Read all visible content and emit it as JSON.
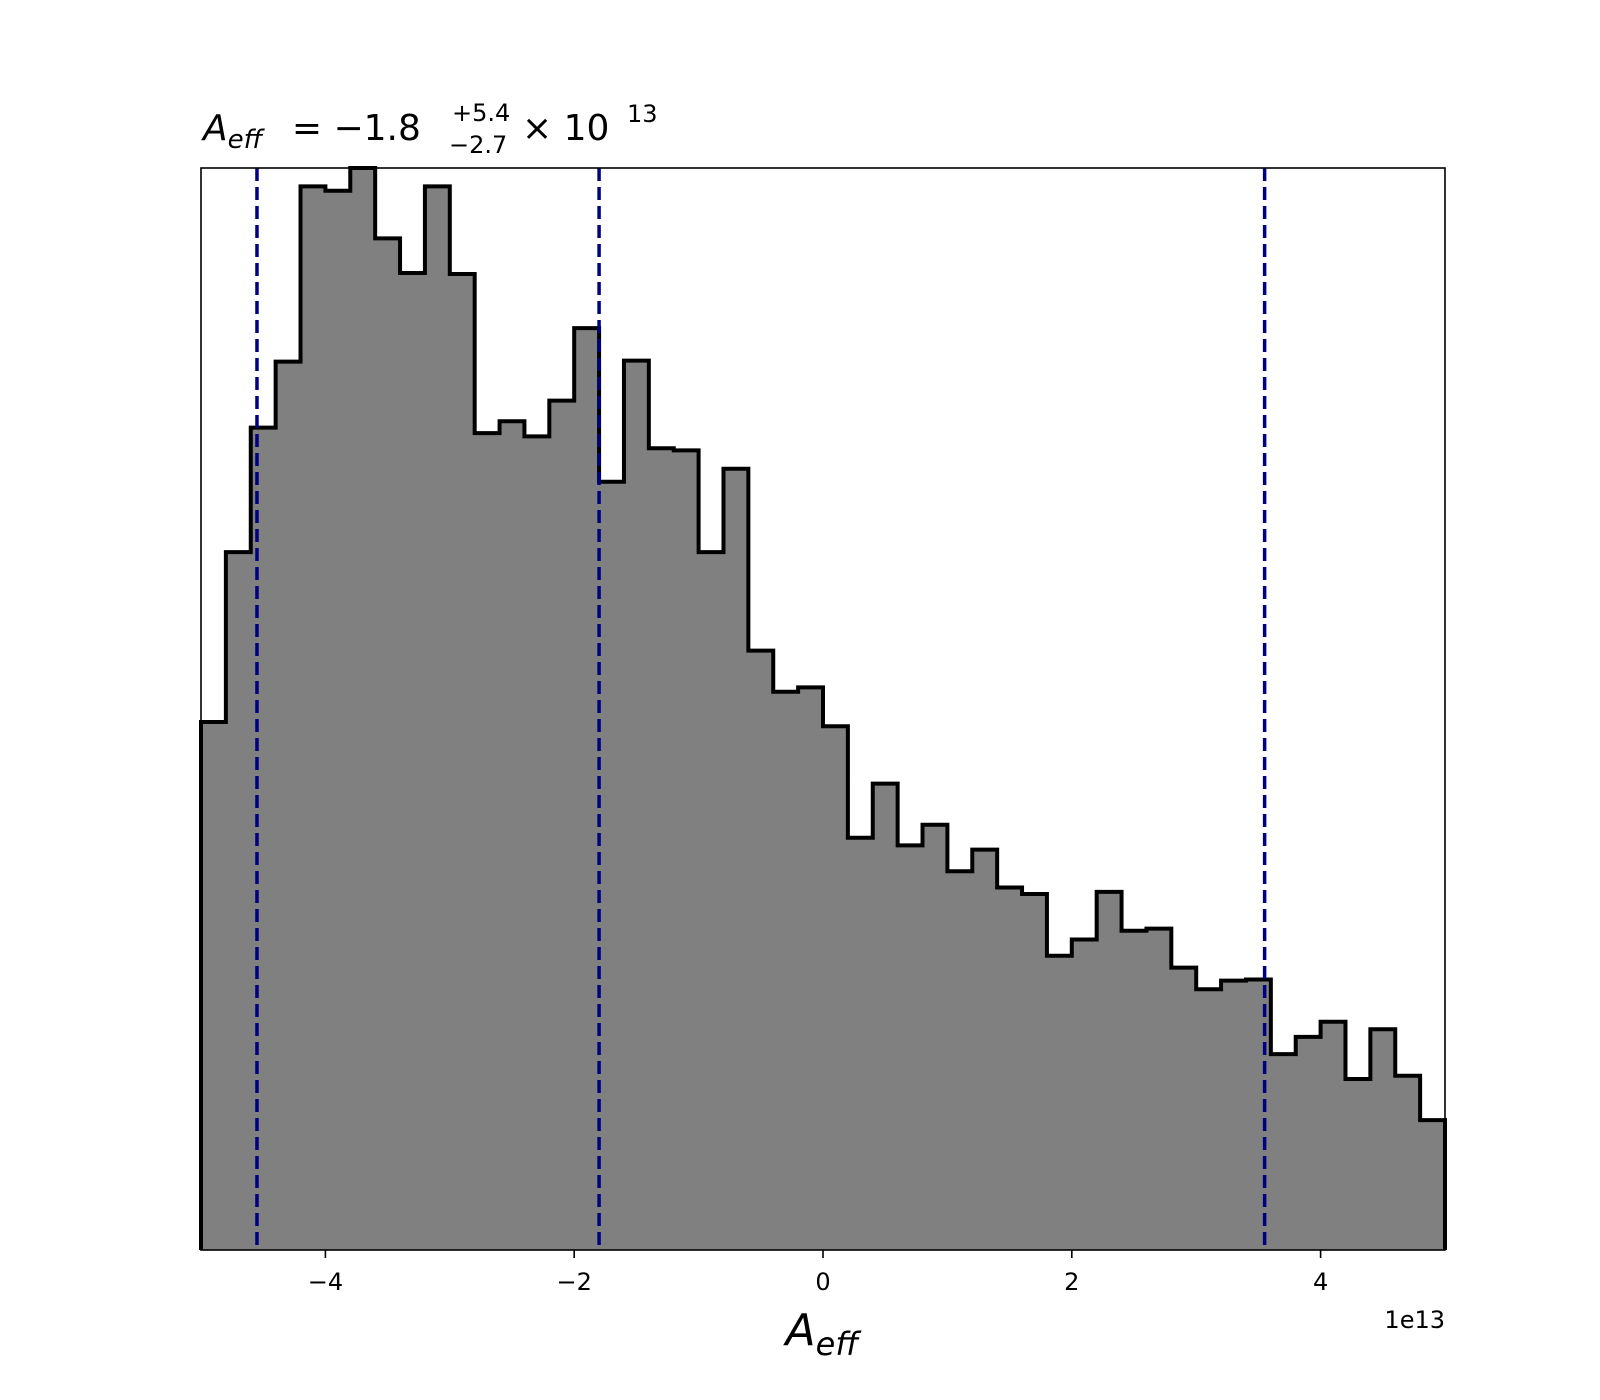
{
  "chart_data": {
    "type": "histogram",
    "title": {
      "symbol": "A",
      "subscript": "eff",
      "prefix": " = −1.8",
      "sup": "+5.4",
      "sub": "−2.7",
      "suffix": " × 10",
      "exponent": "13"
    },
    "xlabel": {
      "symbol": "A",
      "subscript": "eff"
    },
    "ylabel": "",
    "x_offset_label": "1e13",
    "xlim": [
      -5,
      5
    ],
    "ylim": [
      0,
      1.0
    ],
    "xticks": [
      {
        "value": -4,
        "label": "−4"
      },
      {
        "value": -2,
        "label": "−2"
      },
      {
        "value": 0,
        "label": "0"
      },
      {
        "value": 2,
        "label": "2"
      },
      {
        "value": 4,
        "label": "4"
      }
    ],
    "bin_edges": [
      -5.0,
      -4.8,
      -4.6,
      -4.4,
      -4.2,
      -4.0,
      -3.8,
      -3.6,
      -3.4,
      -3.2,
      -3.0,
      -2.8,
      -2.6,
      -2.4,
      -2.2,
      -2.0,
      -1.8,
      -1.6,
      -1.4,
      -1.2,
      -1.0,
      -0.8,
      -0.6,
      -0.4,
      -0.2,
      0.0,
      0.2,
      0.4,
      0.6,
      0.8,
      1.0,
      1.2,
      1.4,
      1.6,
      1.8,
      2.0,
      2.2,
      2.4,
      2.6,
      2.8,
      3.0,
      3.2,
      3.4,
      3.6,
      3.8,
      4.0,
      4.2,
      4.4,
      4.6,
      4.8,
      5.0
    ],
    "counts": [
      0.488,
      0.645,
      0.76,
      0.821,
      0.983,
      0.979,
      1.0,
      0.935,
      0.903,
      0.983,
      0.902,
      0.755,
      0.766,
      0.752,
      0.785,
      0.852,
      0.71,
      0.822,
      0.741,
      0.739,
      0.645,
      0.722,
      0.554,
      0.516,
      0.52,
      0.484,
      0.381,
      0.431,
      0.374,
      0.393,
      0.35,
      0.37,
      0.335,
      0.329,
      0.272,
      0.287,
      0.331,
      0.295,
      0.297,
      0.261,
      0.241,
      0.249,
      0.25,
      0.181,
      0.197,
      0.211,
      0.158,
      0.204,
      0.161,
      0.12
    ],
    "fill_color": "#808080",
    "edge_color": "#000000",
    "vlines": [
      {
        "x": -4.55,
        "color": "#000080",
        "style": "dashed"
      },
      {
        "x": -1.8,
        "color": "#000080",
        "style": "dashed"
      },
      {
        "x": 3.55,
        "color": "#000080",
        "style": "dashed"
      }
    ],
    "grid": false
  }
}
